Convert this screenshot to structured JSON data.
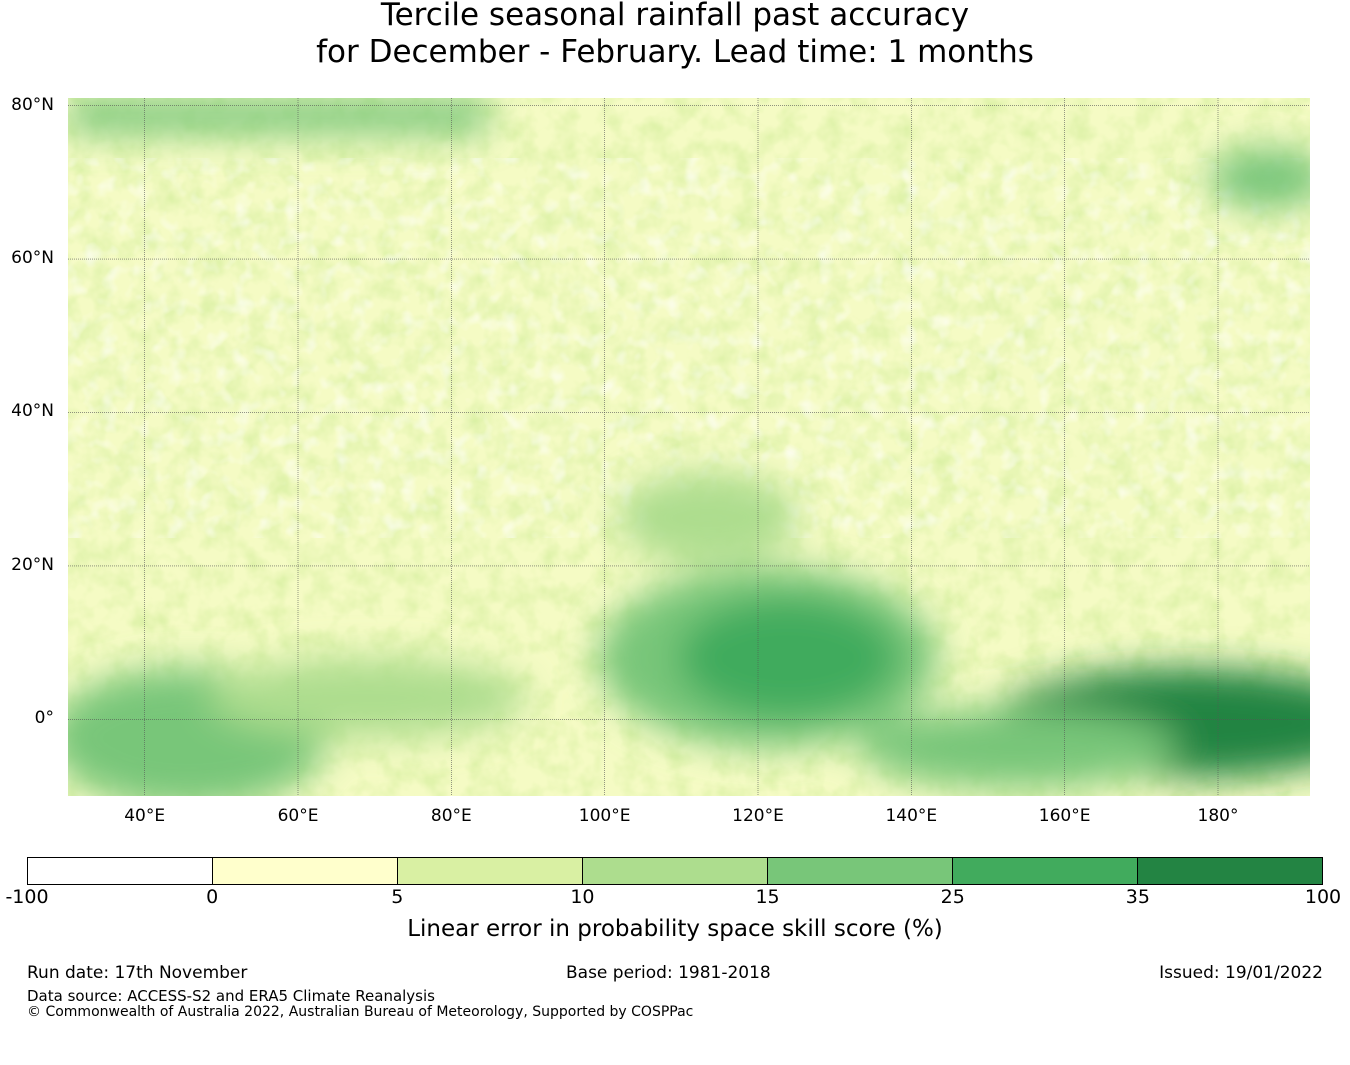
{
  "title_line1": "Tercile seasonal rainfall past accuracy",
  "title_line2": "for December - February. Lead time: 1 months",
  "map": {
    "lon_range": [
      30,
      192
    ],
    "lat_range": [
      -10,
      81
    ],
    "lat_ticks": [
      {
        "value": 80,
        "label": "80°N"
      },
      {
        "value": 60,
        "label": "60°N"
      },
      {
        "value": 40,
        "label": "40°N"
      },
      {
        "value": 20,
        "label": "20°N"
      },
      {
        "value": 0,
        "label": "0°"
      }
    ],
    "lon_ticks": [
      {
        "value": 40,
        "label": "40°E"
      },
      {
        "value": 60,
        "label": "60°E"
      },
      {
        "value": 80,
        "label": "80°E"
      },
      {
        "value": 100,
        "label": "100°E"
      },
      {
        "value": 120,
        "label": "120°E"
      },
      {
        "value": 140,
        "label": "140°E"
      },
      {
        "value": 160,
        "label": "160°E"
      },
      {
        "value": 180,
        "label": "180°"
      }
    ]
  },
  "colorbar": {
    "bounds": [
      "-100",
      "0",
      "5",
      "10",
      "15",
      "25",
      "35",
      "100"
    ],
    "colors": [
      "#ffffff",
      "#ffffcc",
      "#d9f0a3",
      "#addd8e",
      "#78c679",
      "#41ab5d",
      "#238443"
    ],
    "label": "Linear error in probability space skill score (%)"
  },
  "footer": {
    "run_date": "Run date: 17th November",
    "base_period": "Base period: 1981-2018",
    "issued": "Issued: 19/01/2022",
    "data_source": "Data source: ACCESS-S2 and ERA5 Climate Reanalysis",
    "copyright": "© Commonwealth of Australia 2022, Australian Bureau of Meteorology, Supported by COSPPac"
  }
}
